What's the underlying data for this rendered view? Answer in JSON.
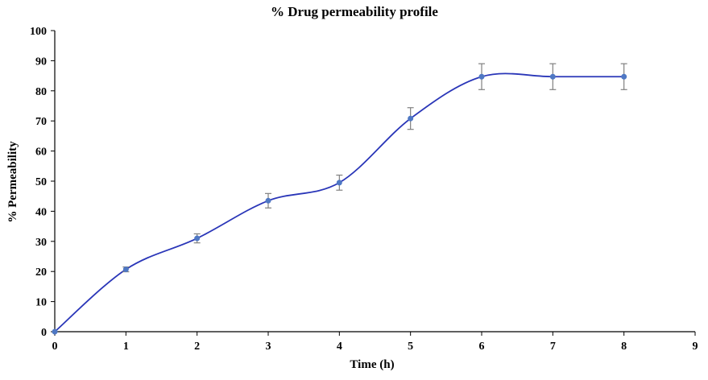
{
  "chart_data": {
    "type": "line",
    "title": "% Drug permeability profile",
    "xlabel": "Time (h)",
    "ylabel": "% Permeability",
    "xlim": [
      0,
      9
    ],
    "ylim": [
      0,
      100
    ],
    "xticks": [
      0,
      1,
      2,
      3,
      4,
      5,
      6,
      7,
      8,
      9
    ],
    "yticks": [
      0,
      10,
      20,
      30,
      40,
      50,
      60,
      70,
      80,
      90,
      100
    ],
    "grid": false,
    "legend": "none",
    "smooth": true,
    "series": [
      {
        "x": [
          0,
          1,
          2,
          3,
          4,
          5,
          6,
          7,
          8
        ],
        "y": [
          0,
          20.7,
          31.0,
          43.5,
          49.5,
          70.8,
          84.7,
          84.7,
          84.7
        ],
        "error": [
          0,
          0.8,
          1.5,
          2.4,
          2.5,
          3.6,
          4.3,
          4.3,
          4.3
        ],
        "color": "#2a36b8",
        "marker_color": "#4f78c4",
        "error_color": "#808080"
      }
    ]
  }
}
